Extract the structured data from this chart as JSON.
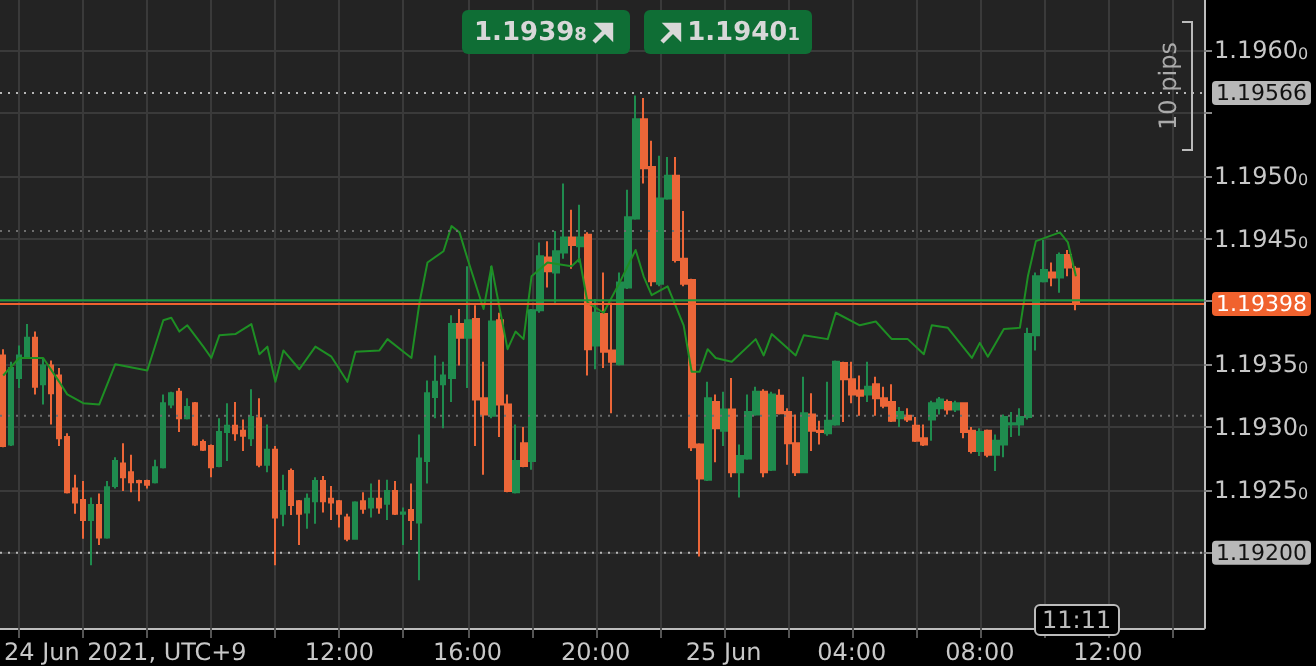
{
  "chart_data": {
    "type": "candlestick",
    "xlabel": "24 Jun 2021, UTC+9",
    "annotations": [
      "1.19398",
      "1.19401",
      "10 pips",
      "11:11"
    ],
    "x": [
      "2021-06-24T01:30",
      "2021-06-24T01:45",
      "2021-06-24T02:00",
      "2021-06-24T02:15",
      "2021-06-24T02:30",
      "2021-06-24T02:45",
      "2021-06-24T03:00",
      "2021-06-24T03:15",
      "2021-06-24T03:30",
      "2021-06-24T03:45",
      "2021-06-24T04:00",
      "2021-06-24T04:15",
      "2021-06-24T04:30",
      "2021-06-24T04:45",
      "2021-06-24T05:00",
      "2021-06-24T05:15",
      "2021-06-24T05:30",
      "2021-06-24T05:45",
      "2021-06-24T06:00",
      "2021-06-24T06:15",
      "2021-06-24T06:30",
      "2021-06-24T06:45",
      "2021-06-24T07:00",
      "2021-06-24T07:15",
      "2021-06-24T07:30",
      "2021-06-24T07:45",
      "2021-06-24T08:00",
      "2021-06-24T08:15",
      "2021-06-24T08:30",
      "2021-06-24T08:45",
      "2021-06-24T09:00",
      "2021-06-24T09:15",
      "2021-06-24T09:30",
      "2021-06-24T09:45",
      "2021-06-24T10:00",
      "2021-06-24T10:15",
      "2021-06-24T10:30",
      "2021-06-24T10:45",
      "2021-06-24T11:00",
      "2021-06-24T11:15",
      "2021-06-24T11:30",
      "2021-06-24T11:45",
      "2021-06-24T12:00",
      "2021-06-24T12:15",
      "2021-06-24T12:30",
      "2021-06-24T12:45",
      "2021-06-24T13:00",
      "2021-06-24T13:15",
      "2021-06-24T13:30",
      "2021-06-24T13:45",
      "2021-06-24T14:00",
      "2021-06-24T14:15",
      "2021-06-24T14:30",
      "2021-06-24T14:45",
      "2021-06-24T15:00",
      "2021-06-24T15:15",
      "2021-06-24T15:30",
      "2021-06-24T15:45",
      "2021-06-24T16:00",
      "2021-06-24T16:15",
      "2021-06-24T16:30",
      "2021-06-24T16:45",
      "2021-06-24T17:00",
      "2021-06-24T17:15",
      "2021-06-24T17:30",
      "2021-06-24T17:45",
      "2021-06-24T18:00",
      "2021-06-24T18:15",
      "2021-06-24T18:30",
      "2021-06-24T18:45",
      "2021-06-24T19:00",
      "2021-06-24T19:15",
      "2021-06-24T19:30",
      "2021-06-24T19:45",
      "2021-06-24T20:00",
      "2021-06-24T20:15",
      "2021-06-24T20:30",
      "2021-06-24T20:45",
      "2021-06-24T21:00",
      "2021-06-24T21:15",
      "2021-06-24T21:30",
      "2021-06-24T21:45",
      "2021-06-24T22:00",
      "2021-06-24T22:15",
      "2021-06-24T22:30",
      "2021-06-24T22:45",
      "2021-06-24T23:00",
      "2021-06-24T23:15",
      "2021-06-24T23:30",
      "2021-06-24T23:45",
      "2021-06-25T00:00",
      "2021-06-25T00:15",
      "2021-06-25T00:30",
      "2021-06-25T00:45",
      "2021-06-25T01:00",
      "2021-06-25T01:15",
      "2021-06-25T01:30",
      "2021-06-25T01:45",
      "2021-06-25T02:00",
      "2021-06-25T02:15",
      "2021-06-25T02:30",
      "2021-06-25T02:45",
      "2021-06-25T03:00",
      "2021-06-25T03:15",
      "2021-06-25T03:30",
      "2021-06-25T03:45",
      "2021-06-25T04:00",
      "2021-06-25T04:15",
      "2021-06-25T04:30",
      "2021-06-25T04:45",
      "2021-06-25T05:00",
      "2021-06-25T05:15",
      "2021-06-25T05:30",
      "2021-06-25T05:45",
      "2021-06-25T06:00",
      "2021-06-25T06:15",
      "2021-06-25T06:30",
      "2021-06-25T06:45",
      "2021-06-25T07:00",
      "2021-06-25T07:15",
      "2021-06-25T07:30",
      "2021-06-25T07:45",
      "2021-06-25T08:00",
      "2021-06-25T08:15",
      "2021-06-25T08:30",
      "2021-06-25T08:45",
      "2021-06-25T09:00",
      "2021-06-25T09:15",
      "2021-06-25T09:30",
      "2021-06-25T09:45",
      "2021-06-25T10:00",
      "2021-06-25T10:15",
      "2021-06-25T10:30",
      "2021-06-25T10:45",
      "2021-06-25T11:00"
    ],
    "ohlc": [
      [
        1.19357,
        1.19362,
        1.19284,
        1.19285
      ],
      [
        1.19286,
        1.19352,
        1.19285,
        1.19347
      ],
      [
        1.19339,
        1.19365,
        1.19331,
        1.19357
      ],
      [
        1.19356,
        1.19382,
        1.19355,
        1.19371
      ],
      [
        1.19371,
        1.19376,
        1.19326,
        1.19332
      ],
      [
        1.19334,
        1.19355,
        1.19318,
        1.19349
      ],
      [
        1.19349,
        1.19353,
        1.19302,
        1.19327
      ],
      [
        1.19341,
        1.19347,
        1.19285,
        1.19291
      ],
      [
        1.19292,
        1.19295,
        1.19247,
        1.19248
      ],
      [
        1.19251,
        1.19262,
        1.19231,
        1.1924
      ],
      [
        1.19242,
        1.19257,
        1.19211,
        1.19226
      ],
      [
        1.19226,
        1.19244,
        1.1919,
        1.19238
      ],
      [
        1.19238,
        1.19247,
        1.19206,
        1.19212
      ],
      [
        1.19212,
        1.19257,
        1.19211,
        1.19252
      ],
      [
        1.19253,
        1.19276,
        1.19251,
        1.19273
      ],
      [
        1.19271,
        1.19287,
        1.19249,
        1.1926
      ],
      [
        1.19264,
        1.19278,
        1.19248,
        1.19256
      ],
      [
        1.19257,
        1.19258,
        1.19241,
        1.19256
      ],
      [
        1.19257,
        1.19258,
        1.19251,
        1.19254
      ],
      [
        1.19256,
        1.19274,
        1.19255,
        1.19268
      ],
      [
        1.19268,
        1.19326,
        1.19267,
        1.19319
      ],
      [
        1.19318,
        1.19328,
        1.19315,
        1.19327
      ],
      [
        1.19328,
        1.19331,
        1.19296,
        1.19307
      ],
      [
        1.19307,
        1.19323,
        1.19306,
        1.19316
      ],
      [
        1.19319,
        1.1932,
        1.19285,
        1.19286
      ],
      [
        1.19288,
        1.1929,
        1.19281,
        1.19282
      ],
      [
        1.19285,
        1.19286,
        1.1926,
        1.19268
      ],
      [
        1.19269,
        1.19307,
        1.19268,
        1.19296
      ],
      [
        1.19296,
        1.19319,
        1.19273,
        1.19301
      ],
      [
        1.19301,
        1.1932,
        1.19289,
        1.19295
      ],
      [
        1.19297,
        1.19306,
        1.19281,
        1.19293
      ],
      [
        1.19291,
        1.1933,
        1.19285,
        1.19308
      ],
      [
        1.19307,
        1.19323,
        1.19268,
        1.1927
      ],
      [
        1.1927,
        1.19302,
        1.19264,
        1.19282
      ],
      [
        1.19282,
        1.19285,
        1.1919,
        1.19228
      ],
      [
        1.19231,
        1.19262,
        1.19221,
        1.19249
      ],
      [
        1.19265,
        1.19267,
        1.1923,
        1.19238
      ],
      [
        1.19241,
        1.19242,
        1.19206,
        1.19231
      ],
      [
        1.19232,
        1.19247,
        1.19219,
        1.19243
      ],
      [
        1.19241,
        1.1926,
        1.19223,
        1.19257
      ],
      [
        1.19257,
        1.19261,
        1.19232,
        1.19241
      ],
      [
        1.19243,
        1.19253,
        1.19226,
        1.1924
      ],
      [
        1.19241,
        1.19242,
        1.1922,
        1.19231
      ],
      [
        1.19228,
        1.19231,
        1.19209,
        1.19211
      ],
      [
        1.19211,
        1.19241,
        1.19211,
        1.1924
      ],
      [
        1.19241,
        1.19248,
        1.19231,
        1.19235
      ],
      [
        1.19236,
        1.19255,
        1.19228,
        1.19243
      ],
      [
        1.19243,
        1.19258,
        1.19231,
        1.19236
      ],
      [
        1.19239,
        1.19258,
        1.19226,
        1.19249
      ],
      [
        1.19249,
        1.19257,
        1.1923,
        1.19231
      ],
      [
        1.19231,
        1.19236,
        1.19206,
        1.19232
      ],
      [
        1.19234,
        1.19255,
        1.1921,
        1.19226
      ],
      [
        1.19224,
        1.19294,
        1.19178,
        1.19275
      ],
      [
        1.19273,
        1.19337,
        1.19255,
        1.19327
      ],
      [
        1.19324,
        1.19357,
        1.19307,
        1.19336
      ],
      [
        1.19334,
        1.19352,
        1.19299,
        1.19341
      ],
      [
        1.19339,
        1.19389,
        1.1932,
        1.19382
      ],
      [
        1.19382,
        1.19394,
        1.19349,
        1.19371
      ],
      [
        1.19371,
        1.19428,
        1.19331,
        1.19385
      ],
      [
        1.19386,
        1.19397,
        1.19285,
        1.19322
      ],
      [
        1.19323,
        1.19352,
        1.19262,
        1.1931
      ],
      [
        1.19309,
        1.19428,
        1.19307,
        1.19384
      ],
      [
        1.19385,
        1.19391,
        1.19292,
        1.19318
      ],
      [
        1.19318,
        1.19326,
        1.19248,
        1.19249
      ],
      [
        1.19248,
        1.19302,
        1.19247,
        1.19273
      ],
      [
        1.19287,
        1.193,
        1.19268,
        1.19269
      ],
      [
        1.19273,
        1.19394,
        1.19266,
        1.19393
      ],
      [
        1.19393,
        1.19447,
        1.19391,
        1.19436
      ],
      [
        1.19435,
        1.19448,
        1.19411,
        1.19424
      ],
      [
        1.19423,
        1.19456,
        1.19399,
        1.1944
      ],
      [
        1.19439,
        1.19494,
        1.19434,
        1.19451
      ],
      [
        1.19451,
        1.19473,
        1.19426,
        1.19445
      ],
      [
        1.19444,
        1.19477,
        1.19431,
        1.19451
      ],
      [
        1.19453,
        1.19455,
        1.19341,
        1.19362
      ],
      [
        1.19365,
        1.19402,
        1.19346,
        1.19391
      ],
      [
        1.1939,
        1.19423,
        1.19347,
        1.1936
      ],
      [
        1.19361,
        1.19399,
        1.19311,
        1.19352
      ],
      [
        1.1935,
        1.19423,
        1.19349,
        1.19415
      ],
      [
        1.19411,
        1.19489,
        1.1941,
        1.19467
      ],
      [
        1.19466,
        1.19564,
        1.19465,
        1.19545
      ],
      [
        1.19545,
        1.19562,
        1.19494,
        1.19506
      ],
      [
        1.19507,
        1.19528,
        1.19412,
        1.19416
      ],
      [
        1.19414,
        1.19516,
        1.19412,
        1.19482
      ],
      [
        1.19482,
        1.19515,
        1.19481,
        1.195
      ],
      [
        1.195,
        1.19515,
        1.19431,
        1.19433
      ],
      [
        1.19434,
        1.19472,
        1.19412,
        1.19414
      ],
      [
        1.19417,
        1.19418,
        1.19281,
        1.19284
      ],
      [
        1.19286,
        1.19287,
        1.19197,
        1.19259
      ],
      [
        1.19258,
        1.19336,
        1.19257,
        1.19323
      ],
      [
        1.1932,
        1.19326,
        1.19272,
        1.19299
      ],
      [
        1.19297,
        1.19328,
        1.19285,
        1.19314
      ],
      [
        1.19314,
        1.19339,
        1.1926,
        1.19264
      ],
      [
        1.19264,
        1.19286,
        1.19244,
        1.19277
      ],
      [
        1.19275,
        1.19326,
        1.19274,
        1.19312
      ],
      [
        1.1931,
        1.19332,
        1.19309,
        1.19328
      ],
      [
        1.19328,
        1.1933,
        1.1926,
        1.19264
      ],
      [
        1.19266,
        1.19328,
        1.19265,
        1.19326
      ],
      [
        1.19325,
        1.1933,
        1.1931,
        1.19311
      ],
      [
        1.19312,
        1.19315,
        1.1927,
        1.19287
      ],
      [
        1.19287,
        1.1931,
        1.19261,
        1.19264
      ],
      [
        1.19264,
        1.1934,
        1.19264,
        1.19311
      ],
      [
        1.1931,
        1.19327,
        1.19281,
        1.19297
      ],
      [
        1.19297,
        1.19305,
        1.19286,
        1.19296
      ],
      [
        1.19295,
        1.19336,
        1.19293,
        1.19305
      ],
      [
        1.19302,
        1.19353,
        1.19301,
        1.19352
      ],
      [
        1.19351,
        1.19352,
        1.19304,
        1.19338
      ],
      [
        1.19338,
        1.19352,
        1.19319,
        1.19326
      ],
      [
        1.19329,
        1.19341,
        1.19309,
        1.19325
      ],
      [
        1.19326,
        1.19352,
        1.1932,
        1.19332
      ],
      [
        1.19334,
        1.1934,
        1.19309,
        1.19323
      ],
      [
        1.19323,
        1.19332,
        1.19315,
        1.19317
      ],
      [
        1.1932,
        1.19334,
        1.19304,
        1.19305
      ],
      [
        1.19307,
        1.19316,
        1.193,
        1.19312
      ],
      [
        1.19309,
        1.19315,
        1.19304,
        1.19306
      ],
      [
        1.19301,
        1.19308,
        1.19288,
        1.19289
      ],
      [
        1.19291,
        1.19302,
        1.19285,
        1.19286
      ],
      [
        1.19306,
        1.19321,
        1.19289,
        1.19319
      ],
      [
        1.19315,
        1.19324,
        1.1931,
        1.19322
      ],
      [
        1.1932,
        1.19322,
        1.1931,
        1.19314
      ],
      [
        1.19314,
        1.19321,
        1.19312,
        1.19319
      ],
      [
        1.19319,
        1.19319,
        1.19291,
        1.19296
      ],
      [
        1.19297,
        1.193,
        1.19279,
        1.19281
      ],
      [
        1.19281,
        1.19299,
        1.19277,
        1.19296
      ],
      [
        1.19297,
        1.19298,
        1.19276,
        1.19278
      ],
      [
        1.19278,
        1.19294,
        1.19265,
        1.19289
      ],
      [
        1.19286,
        1.1931,
        1.19276,
        1.19308
      ],
      [
        1.19302,
        1.19312,
        1.19292,
        1.19303
      ],
      [
        1.19302,
        1.19315,
        1.19293,
        1.19308
      ],
      [
        1.19308,
        1.19379,
        1.19306,
        1.19374
      ],
      [
        1.19373,
        1.19423,
        1.19361,
        1.1942
      ],
      [
        1.19416,
        1.19449,
        1.19415,
        1.19425
      ],
      [
        1.19423,
        1.19431,
        1.19412,
        1.19419
      ],
      [
        1.19419,
        1.19439,
        1.19407,
        1.19437
      ],
      [
        1.19437,
        1.19441,
        1.1942,
        1.19427
      ],
      [
        1.19426,
        1.19428,
        1.19393,
        1.19398
      ]
    ],
    "series": [
      {
        "type": "line",
        "color": "#1e8f24",
        "x": [
          "2021-06-24T01:30",
          "2021-06-24T02:00",
          "2021-06-24T02:45",
          "2021-06-24T03:15",
          "2021-06-24T03:30",
          "2021-06-24T04:00",
          "2021-06-24T04:30",
          "2021-06-24T05:00",
          "2021-06-24T06:00",
          "2021-06-24T06:30",
          "2021-06-24T06:45",
          "2021-06-24T07:00",
          "2021-06-24T07:15",
          "2021-06-24T07:45",
          "2021-06-24T08:00",
          "2021-06-24T08:15",
          "2021-06-24T08:45",
          "2021-06-24T09:15",
          "2021-06-24T09:30",
          "2021-06-24T09:45",
          "2021-06-24T10:00",
          "2021-06-24T10:15",
          "2021-06-24T10:45",
          "2021-06-24T11:15",
          "2021-06-24T11:45",
          "2021-06-24T12:15",
          "2021-06-24T12:30",
          "2021-06-24T13:15",
          "2021-06-24T13:30",
          "2021-06-24T14:00",
          "2021-06-24T14:15",
          "2021-06-24T14:30",
          "2021-06-24T14:45",
          "2021-06-24T15:15",
          "2021-06-24T15:30",
          "2021-06-24T15:45",
          "2021-06-24T16:00",
          "2021-06-24T16:30",
          "2021-06-24T16:45",
          "2021-06-24T17:15",
          "2021-06-24T17:30",
          "2021-06-24T17:45",
          "2021-06-24T18:00",
          "2021-06-24T18:30",
          "2021-06-24T19:15",
          "2021-06-24T19:30",
          "2021-06-24T19:45",
          "2021-06-24T20:15",
          "2021-06-24T20:45",
          "2021-06-24T21:15",
          "2021-06-24T21:30",
          "2021-06-24T21:45",
          "2021-06-24T22:15",
          "2021-06-24T22:45",
          "2021-06-24T23:00",
          "2021-06-24T23:15",
          "2021-06-24T23:30",
          "2021-06-24T23:45",
          "2021-06-25T00:15",
          "2021-06-25T01:00",
          "2021-06-25T01:15",
          "2021-06-25T01:30",
          "2021-06-25T02:15",
          "2021-06-25T02:30",
          "2021-06-25T03:15",
          "2021-06-25T03:30",
          "2021-06-25T04:15",
          "2021-06-25T04:45",
          "2021-06-25T05:15",
          "2021-06-25T05:45",
          "2021-06-25T06:15",
          "2021-06-25T06:30",
          "2021-06-25T07:00",
          "2021-06-25T07:45",
          "2021-06-25T08:00",
          "2021-06-25T08:15",
          "2021-06-25T08:45",
          "2021-06-25T09:15",
          "2021-06-25T09:30",
          "2021-06-25T09:45",
          "2021-06-25T10:30",
          "2021-06-25T10:45",
          "2021-06-25T11:00"
        ],
        "values": [
          1.19341,
          1.19355,
          1.19355,
          1.19336,
          1.19326,
          1.19319,
          1.19318,
          1.1935,
          1.19345,
          1.19385,
          1.19387,
          1.19376,
          1.19381,
          1.19364,
          1.19355,
          1.19373,
          1.19374,
          1.19382,
          1.19358,
          1.19364,
          1.19336,
          1.19361,
          1.19346,
          1.19364,
          1.19356,
          1.19336,
          1.1936,
          1.19361,
          1.1937,
          1.1936,
          1.19355,
          1.19399,
          1.19431,
          1.1944,
          1.1946,
          1.19455,
          1.19434,
          1.19394,
          1.19428,
          1.19362,
          1.19376,
          1.1937,
          1.1942,
          1.19431,
          1.19428,
          1.19434,
          1.19399,
          1.19391,
          1.19415,
          1.19441,
          1.1942,
          1.19405,
          1.19412,
          1.19381,
          1.19344,
          1.19344,
          1.19362,
          1.19355,
          1.19352,
          1.1937,
          1.19357,
          1.19374,
          1.19357,
          1.19373,
          1.1937,
          1.19391,
          1.19381,
          1.19384,
          1.1937,
          1.1937,
          1.19358,
          1.19381,
          1.19379,
          1.19355,
          1.19367,
          1.19356,
          1.19378,
          1.19379,
          1.1942,
          1.19448,
          1.19455,
          1.19447,
          1.1942
        ]
      }
    ],
    "xlim": [
      "2021-06-24T01:24",
      "2021-06-25T15:00"
    ],
    "xticks": [
      {
        "value": "2021-06-24T02:00",
        "label": null
      },
      {
        "value": "2021-06-24T04:00",
        "label": null
      },
      {
        "value": "2021-06-24T06:00",
        "label": null
      },
      {
        "value": "2021-06-24T08:00",
        "label": null
      },
      {
        "value": "2021-06-24T10:00",
        "label": null
      },
      {
        "value": "2021-06-24T12:00",
        "label": "12:00"
      },
      {
        "value": "2021-06-24T14:00",
        "label": null
      },
      {
        "value": "2021-06-24T16:00",
        "label": "16:00"
      },
      {
        "value": "2021-06-24T18:00",
        "label": null
      },
      {
        "value": "2021-06-24T20:00",
        "label": "20:00"
      },
      {
        "value": "2021-06-24T22:00",
        "label": null
      },
      {
        "value": "2021-06-25T00:00",
        "label": "25 Jun"
      },
      {
        "value": "2021-06-25T02:00",
        "label": null
      },
      {
        "value": "2021-06-25T04:00",
        "label": "04:00"
      },
      {
        "value": "2021-06-25T06:00",
        "label": null
      },
      {
        "value": "2021-06-25T08:00",
        "label": "08:00"
      },
      {
        "value": "2021-06-25T10:00",
        "label": null
      },
      {
        "value": "2021-06-25T12:00",
        "label": "12:00"
      },
      {
        "value": "2021-06-25T14:00",
        "label": null
      }
    ],
    "ylim": [
      1.1914,
      1.1964
    ],
    "yticks": [
      {
        "value": 1.192,
        "label": null
      },
      {
        "value": 1.1925,
        "label": "1.19250"
      },
      {
        "value": 1.193,
        "label": "1.19300"
      },
      {
        "value": 1.1935,
        "label": "1.19350"
      },
      {
        "value": 1.194,
        "label": null
      },
      {
        "value": 1.1945,
        "label": "1.19450"
      },
      {
        "value": 1.195,
        "label": "1.19500"
      },
      {
        "value": 1.1955,
        "label": null
      },
      {
        "value": 1.196,
        "label": "1.19600"
      }
    ],
    "ref_lines": [
      {
        "axis": "y",
        "value": 1.19566,
        "label": "1.19566",
        "color": "#b8b8b8",
        "line_style": "dotted"
      },
      {
        "axis": "y",
        "value": 1.19456,
        "color": "#6e6e6e",
        "line_style": "dotted"
      },
      {
        "axis": "y",
        "value": 1.19401,
        "color": "#1e9a3c",
        "line_style": "solid"
      },
      {
        "axis": "y",
        "value": 1.19398,
        "label": "1.19398",
        "color": "#f0622e",
        "line_style": "solid"
      },
      {
        "axis": "y",
        "value": 1.19309,
        "color": "#6e6e6e",
        "line_style": "dotted"
      },
      {
        "axis": "y",
        "value": 1.192,
        "label": "1.19200",
        "color": "#b8b8b8",
        "line_style": "dotted"
      }
    ],
    "grid": true
  }
}
